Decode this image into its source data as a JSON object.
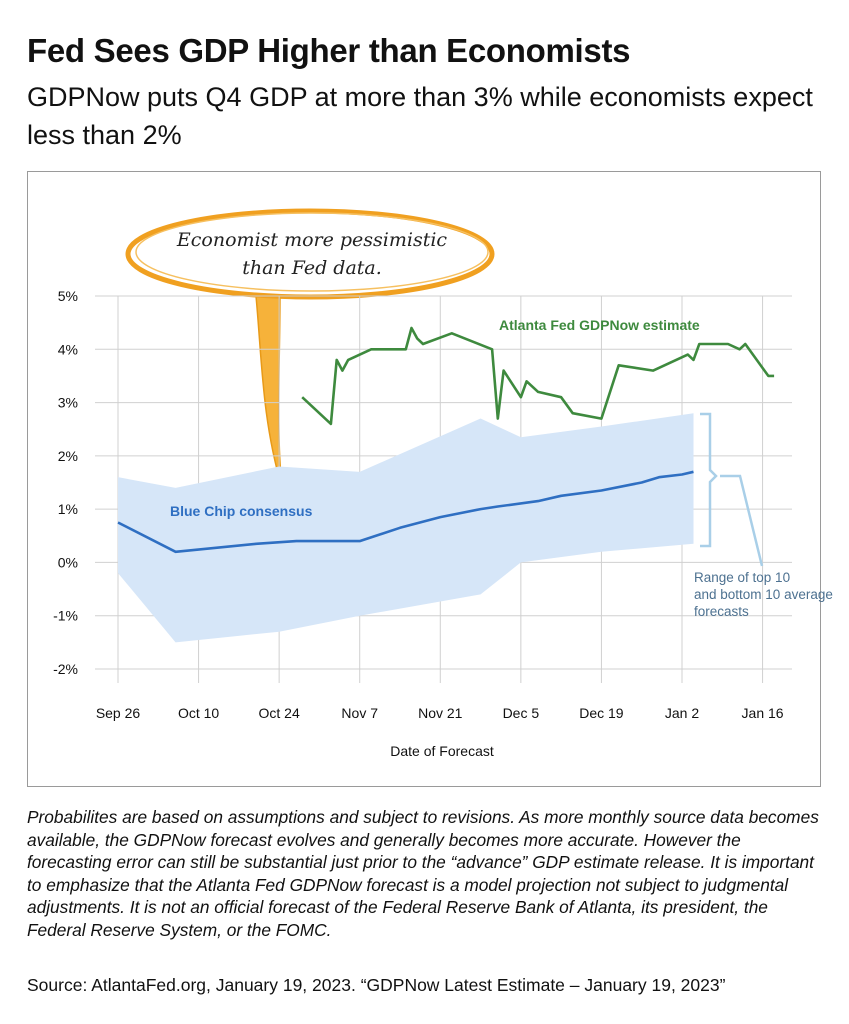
{
  "title": "Fed Sees GDP Higher than Economists",
  "subtitle": "GDPNow puts Q4 GDP at more than 3% while economists expect less than 2%",
  "callout": {
    "line1": "Economist more pessimistic",
    "line2": "than Fed data."
  },
  "footnote": "Probabilites are based on assumptions and subject to revisions. As more monthly source data becomes available, the GDPNow forecast evolves and generally becomes more accurate. However the forecasting error can still be substantial just prior to the “advance” GDP estimate release. It is important to emphasize that the Atlanta Fed GDPNow forecast is a model projection not subject to judgmental adjustments. It is not an official forecast of the Federal Reserve Bank of Atlanta, its president, the Federal Reserve System, or the FOMC.",
  "source": "Source: AtlantaFed.org, January 19, 2023. “GDPNow Latest Estimate – January 19, 2023”",
  "colors": {
    "gdpnow": "#3e8a3e",
    "bluechip": "#2f6fc2",
    "band": "#d6e6f8",
    "bracket": "#a9cfe8",
    "callout": "#f0a020",
    "grid": "#d0d0d0"
  },
  "chart_data": {
    "type": "line",
    "xlabel": "Date of Forecast",
    "ylabel": "",
    "x_tick_labels": [
      "Sep 26",
      "Oct 10",
      "Oct 24",
      "Nov 7",
      "Nov 21",
      "Dec 5",
      "Dec 19",
      "Jan 2",
      "Jan 16"
    ],
    "x_tick_dates": [
      "2022-09-26",
      "2022-10-10",
      "2022-10-24",
      "2022-11-07",
      "2022-11-21",
      "2022-12-05",
      "2022-12-19",
      "2023-01-02",
      "2023-01-16"
    ],
    "y_tick_labels": [
      "5%",
      "4%",
      "3%",
      "2%",
      "1%",
      "0%",
      "-1%",
      "-2%"
    ],
    "ylim": [
      -2,
      5
    ],
    "grid": true,
    "series": [
      {
        "name": "Atlanta Fed GDPNow estimate",
        "x": [
          "2022-10-28",
          "2022-11-02",
          "2022-11-03",
          "2022-11-04",
          "2022-11-05",
          "2022-11-09",
          "2022-11-15",
          "2022-11-16",
          "2022-11-17",
          "2022-11-18",
          "2022-11-23",
          "2022-11-30",
          "2022-12-01",
          "2022-12-02",
          "2022-12-05",
          "2022-12-06",
          "2022-12-08",
          "2022-12-12",
          "2022-12-14",
          "2022-12-19",
          "2022-12-22",
          "2022-12-28",
          "2023-01-03",
          "2023-01-04",
          "2023-01-05",
          "2023-01-10",
          "2023-01-12",
          "2023-01-13",
          "2023-01-17",
          "2023-01-18"
        ],
        "values": [
          3.1,
          2.6,
          3.8,
          3.6,
          3.8,
          4.0,
          4.0,
          4.4,
          4.2,
          4.1,
          4.3,
          4.0,
          2.7,
          3.6,
          3.1,
          3.4,
          3.2,
          3.1,
          2.8,
          2.7,
          3.7,
          3.6,
          3.9,
          3.8,
          4.1,
          4.1,
          4.0,
          4.1,
          3.5,
          3.5
        ]
      },
      {
        "name": "Blue Chip consensus",
        "x": [
          "2022-09-26",
          "2022-10-06",
          "2022-10-20",
          "2022-10-27",
          "2022-11-03",
          "2022-11-07",
          "2022-11-14",
          "2022-11-21",
          "2022-11-28",
          "2022-12-01",
          "2022-12-08",
          "2022-12-12",
          "2022-12-19",
          "2022-12-26",
          "2022-12-29",
          "2023-01-02",
          "2023-01-04"
        ],
        "values": [
          0.75,
          0.2,
          0.35,
          0.4,
          0.4,
          0.4,
          0.65,
          0.85,
          1.0,
          1.05,
          1.15,
          1.25,
          1.35,
          1.5,
          1.6,
          1.65,
          1.7
        ]
      }
    ],
    "band": {
      "name": "Range of top 10 and bottom 10 average forecasts",
      "x": [
        "2022-09-26",
        "2022-10-06",
        "2022-10-24",
        "2022-11-07",
        "2022-11-28",
        "2022-12-05",
        "2022-12-19",
        "2023-01-04"
      ],
      "upper": [
        1.6,
        1.4,
        1.8,
        1.7,
        2.7,
        2.35,
        2.55,
        2.8
      ],
      "lower": [
        -0.2,
        -1.5,
        -1.3,
        -1.0,
        -0.6,
        0.0,
        0.2,
        0.35
      ]
    }
  }
}
